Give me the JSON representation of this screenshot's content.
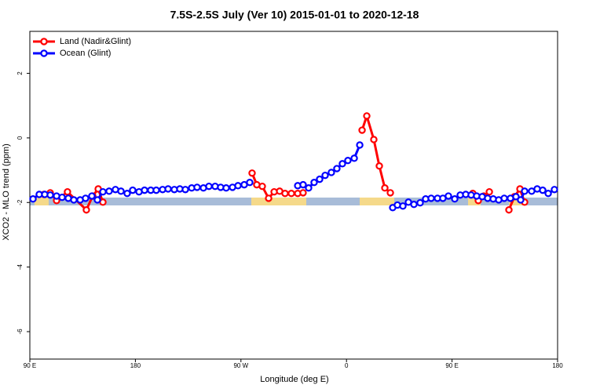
{
  "chart_data": {
    "type": "line",
    "title": "7.5S-2.5S July (Ver 10)   2015-01-01 to 2020-12-18",
    "x_label": "Longitude (deg E)",
    "y_label": "XCO2 - MLO trend (ppm)",
    "xlim": [
      90,
      540
    ],
    "ylim": [
      -6.85,
      3.3
    ],
    "xticks": [
      {
        "value": 90,
        "label": "90 E"
      },
      180,
      {
        "value": 270,
        "label": "90 W"
      },
      {
        "value": 360,
        "label": "0"
      },
      {
        "value": 450,
        "label": "90 E"
      },
      {
        "value": 540,
        "label": "180"
      }
    ],
    "yticks": [
      -6,
      -4,
      -2,
      0,
      2
    ],
    "grid": false,
    "legend": "top-left",
    "series": [
      {
        "name": "Land (Nadir&Glint)",
        "color": "#ff0000",
        "x": [
          102.1,
          107.4,
          112.8,
          122.1,
          138.2,
          143.6,
          148.3,
          152.3,
          null,
          279.5,
          283.5,
          288.2,
          293.6,
          298.3,
          303.0,
          307.6,
          313.0,
          318.4,
          323.0,
          null,
          373.3,
          377.3,
          383.3,
          388.0,
          392.7,
          397.4,
          null,
          467.7,
          472.4,
          477.1,
          481.8,
          null,
          498.5,
          503.2,
          507.9,
          511.9
        ],
        "values": [
          -1.75,
          -1.7,
          -1.94,
          -1.67,
          -2.23,
          -1.8,
          -1.58,
          -1.99,
          null,
          -1.09,
          -1.45,
          -1.5,
          -1.87,
          -1.67,
          -1.65,
          -1.72,
          -1.72,
          -1.72,
          -1.7,
          null,
          0.24,
          0.68,
          -0.05,
          -0.87,
          -1.55,
          -1.7,
          null,
          -1.72,
          -1.94,
          -1.8,
          -1.67,
          null,
          -2.23,
          -1.82,
          -1.58,
          -1.99
        ]
      },
      {
        "name": "Ocean (Glint)",
        "color": "#0000ff",
        "x": [
          92.7,
          98.0,
          102.7,
          107.4,
          112.8,
          117.5,
          122.8,
          127.5,
          132.9,
          137.5,
          142.9,
          147.6,
          152.3,
          157.6,
          163.0,
          167.7,
          173.0,
          177.7,
          183.1,
          187.8,
          193.1,
          197.8,
          203.2,
          207.9,
          213.2,
          217.9,
          222.6,
          228.0,
          232.6,
          238.0,
          242.7,
          248.0,
          252.7,
          257.4,
          262.8,
          267.5,
          272.8,
          277.5,
          null,
          318.4,
          323.0,
          327.7,
          332.4,
          337.1,
          341.8,
          347.1,
          351.8,
          356.5,
          361.2,
          366.6,
          371.3,
          null,
          399.4,
          403.4,
          408.1,
          412.8,
          417.5,
          422.8,
          427.5,
          432.2,
          437.6,
          442.2,
          446.9,
          452.3,
          457.0,
          461.7,
          466.3,
          471.0,
          475.7,
          480.4,
          485.1,
          489.8,
          494.5,
          499.8,
          504.5,
          508.5,
          511.9,
          517.9,
          522.6,
          527.3,
          532.0,
          537.3
        ],
        "values": [
          -1.89,
          -1.75,
          -1.75,
          -1.77,
          -1.8,
          -1.84,
          -1.87,
          -1.92,
          -1.92,
          -1.87,
          -1.8,
          -1.92,
          -1.67,
          -1.65,
          -1.6,
          -1.65,
          -1.72,
          -1.62,
          -1.67,
          -1.62,
          -1.62,
          -1.62,
          -1.6,
          -1.58,
          -1.6,
          -1.58,
          -1.6,
          -1.55,
          -1.53,
          -1.55,
          -1.5,
          -1.5,
          -1.53,
          -1.55,
          -1.53,
          -1.48,
          -1.45,
          -1.38,
          null,
          -1.48,
          -1.45,
          -1.55,
          -1.38,
          -1.28,
          -1.16,
          -1.07,
          -0.95,
          -0.8,
          -0.7,
          -0.63,
          -0.22,
          null,
          -2.16,
          -2.08,
          -2.11,
          -1.99,
          -2.06,
          -2.01,
          -1.89,
          -1.87,
          -1.87,
          -1.87,
          -1.8,
          -1.89,
          -1.77,
          -1.75,
          -1.77,
          -1.8,
          -1.82,
          -1.87,
          -1.89,
          -1.92,
          -1.87,
          -1.87,
          -1.82,
          -1.92,
          -1.65,
          -1.65,
          -1.58,
          -1.62,
          -1.72,
          -1.6
        ]
      }
    ]
  }
}
